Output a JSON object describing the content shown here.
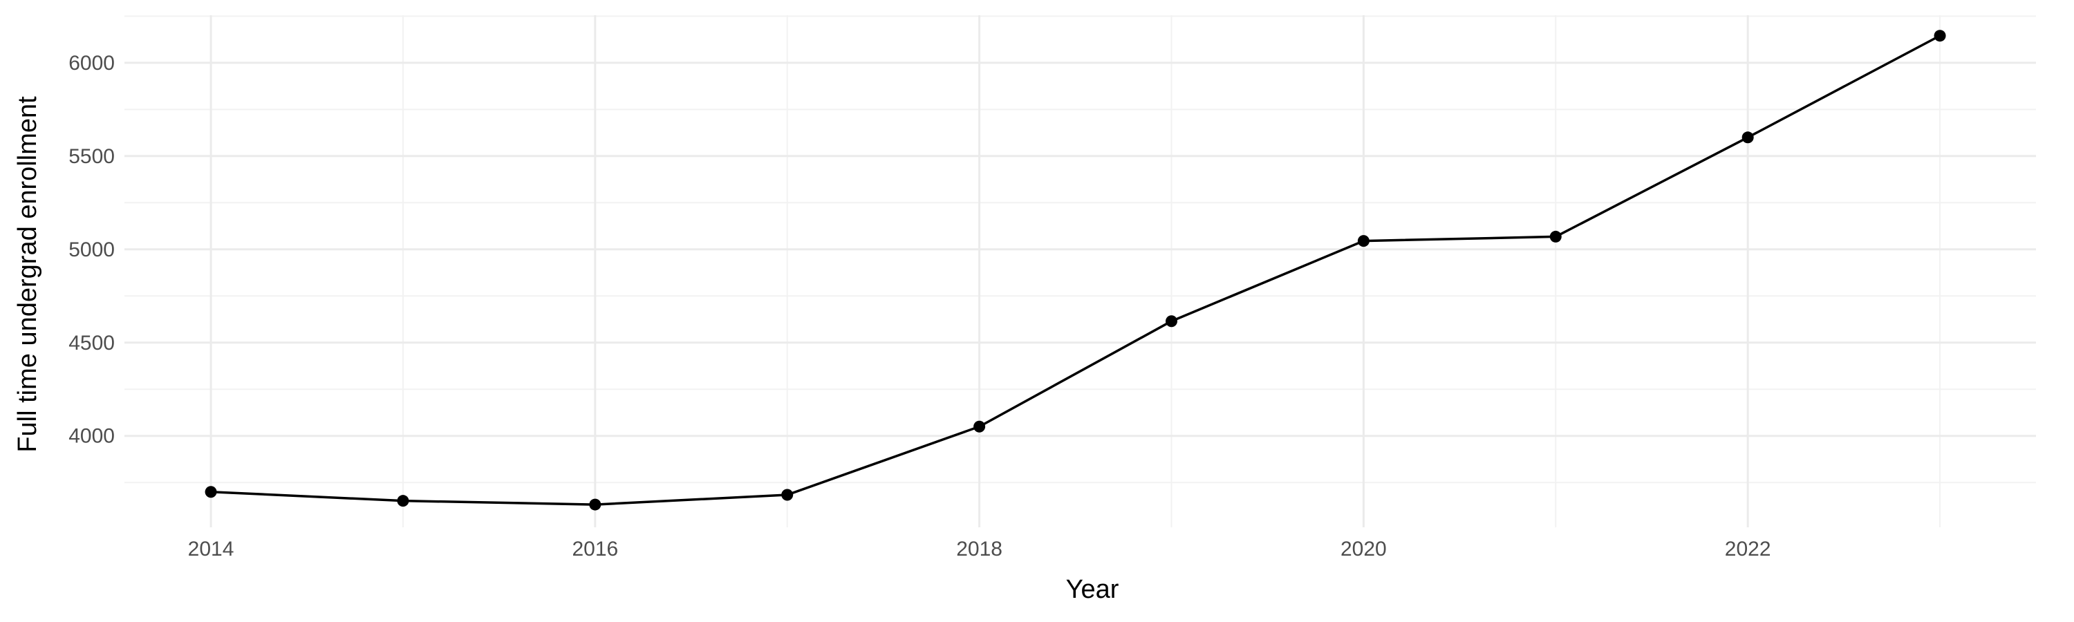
{
  "chart_data": {
    "type": "line",
    "title": "",
    "xlabel": "Year",
    "ylabel": "Full time undergrad enrollment",
    "x": [
      2014,
      2015,
      2016,
      2017,
      2018,
      2019,
      2020,
      2021,
      2022,
      2023
    ],
    "series": [
      {
        "values": [
          3700,
          3652,
          3632,
          3684,
          4050,
          4615,
          5045,
          5068,
          5600,
          6145
        ]
      }
    ],
    "xlim": [
      2013.55,
      2023.5
    ],
    "ylim": [
      3510,
      6255
    ],
    "x_ticks": [
      2014,
      2016,
      2018,
      2020,
      2022
    ],
    "x_tick_labels": [
      "2014",
      "2016",
      "2018",
      "2020",
      "2022"
    ],
    "y_ticks": [
      4000,
      4500,
      5000,
      5500,
      6000
    ],
    "y_tick_labels": [
      "4000",
      "4500",
      "5000",
      "5500",
      "6000"
    ],
    "grid": true,
    "legend": "none",
    "colors": {
      "line": "#000000",
      "points": "#000000",
      "grid_major": "#ebebeb",
      "grid_minor": "#f2f2f2",
      "background": "#ffffff"
    }
  }
}
